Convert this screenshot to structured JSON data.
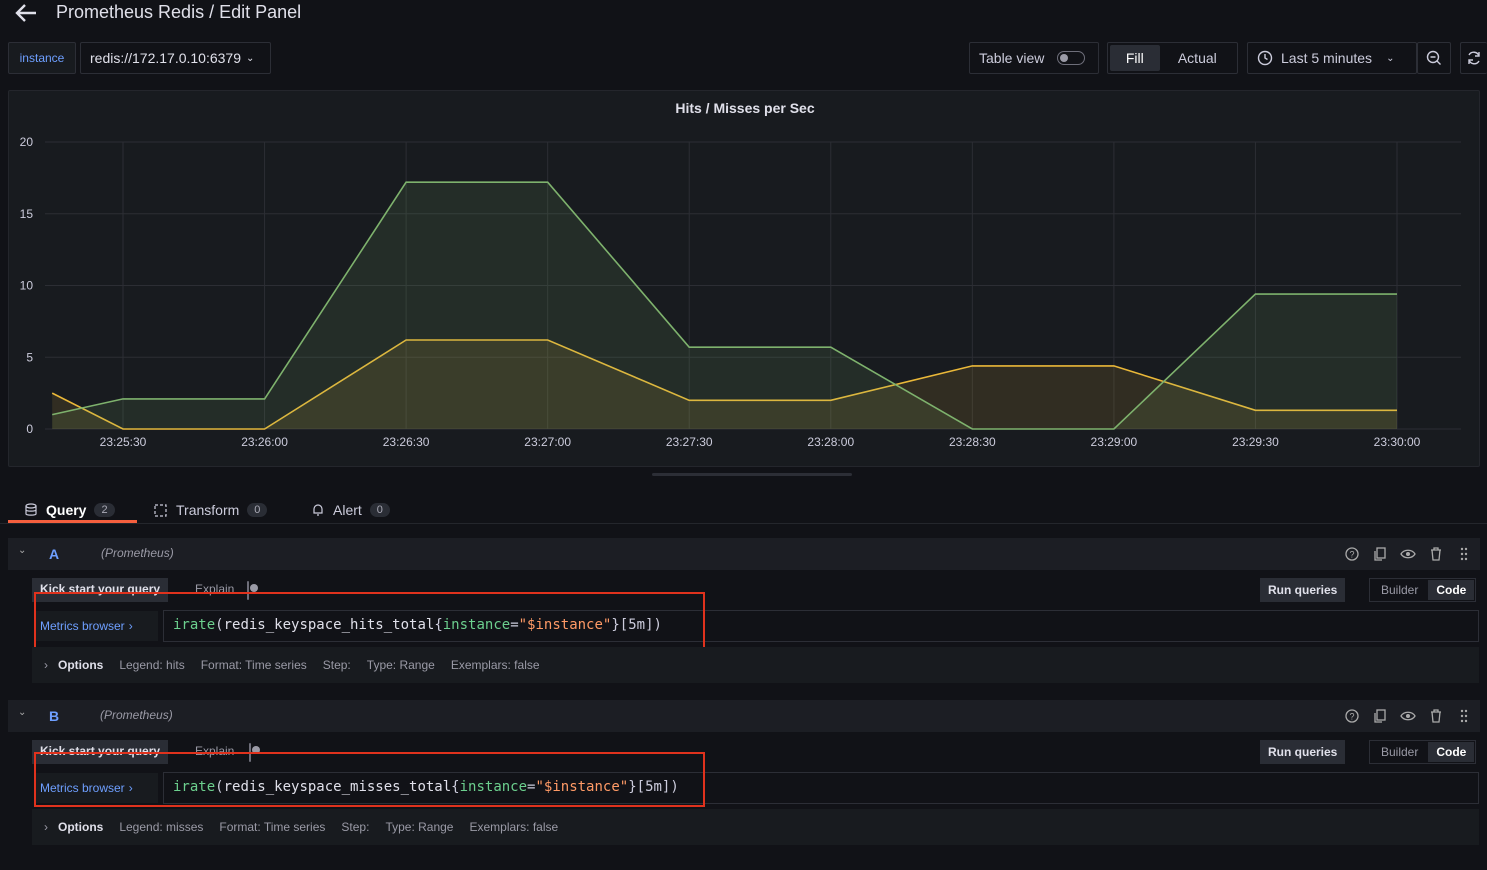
{
  "header": {
    "title": "Prometheus Redis / Edit Panel"
  },
  "variables": {
    "label": "instance",
    "value": "redis://172.17.0.10:6379"
  },
  "toolbar": {
    "table_view": "Table view",
    "fill": "Fill",
    "actual": "Actual",
    "time_range": "Last 5 minutes"
  },
  "panel": {
    "title": "Hits / Misses per Sec"
  },
  "chart_data": {
    "type": "area",
    "title": "Hits / Misses per Sec",
    "ylim": [
      0,
      20
    ],
    "y_ticks": [
      "0",
      "5",
      "10",
      "15",
      "20"
    ],
    "x_ticks": [
      "23:25:30",
      "23:26:00",
      "23:26:30",
      "23:27:00",
      "23:27:30",
      "23:28:00",
      "23:28:30",
      "23:29:00",
      "23:29:30",
      "23:30:00"
    ],
    "grid": true,
    "x": [
      "23:25:15",
      "23:25:30",
      "23:26:00",
      "23:26:30",
      "23:27:00",
      "23:27:30",
      "23:28:00",
      "23:28:30",
      "23:29:00",
      "23:29:30",
      "23:30:00"
    ],
    "series": [
      {
        "name": "hits",
        "color": "#7eb26d",
        "values": [
          1.0,
          2.1,
          2.1,
          17.2,
          17.2,
          5.7,
          5.7,
          0,
          0,
          9.4,
          9.4
        ]
      },
      {
        "name": "misses",
        "color": "#eab839",
        "values": [
          2.5,
          0,
          0,
          6.2,
          6.2,
          2.0,
          2.0,
          4.4,
          4.4,
          1.3,
          1.3
        ]
      }
    ]
  },
  "tabs": [
    {
      "label": "Query",
      "count": "2"
    },
    {
      "label": "Transform",
      "count": "0"
    },
    {
      "label": "Alert",
      "count": "0"
    }
  ],
  "queries": [
    {
      "ref": "A",
      "datasource": "(Prometheus)",
      "kick_start": "Kick start your query",
      "explain": "Explain",
      "run": "Run queries",
      "builder": "Builder",
      "code": "Code",
      "metrics_browser": "Metrics browser",
      "expr": {
        "fn": "irate",
        "metric": "redis_keyspace_hits_total",
        "label_key": "instance",
        "label_val": "\"$instance\"",
        "range": "[5m]"
      },
      "options": {
        "title": "Options",
        "legend": "Legend: hits",
        "format": "Format: Time series",
        "step": "Step:",
        "type": "Type: Range",
        "exemplars": "Exemplars: false"
      }
    },
    {
      "ref": "B",
      "datasource": "(Prometheus)",
      "kick_start": "Kick start your query",
      "explain": "Explain",
      "run": "Run queries",
      "builder": "Builder",
      "code": "Code",
      "metrics_browser": "Metrics browser",
      "expr": {
        "fn": "irate",
        "metric": "redis_keyspace_misses_total",
        "label_key": "instance",
        "label_val": "\"$instance\"",
        "range": "[5m]"
      },
      "options": {
        "title": "Options",
        "legend": "Legend: misses",
        "format": "Format: Time series",
        "step": "Step:",
        "type": "Type: Range",
        "exemplars": "Exemplars: false"
      }
    }
  ]
}
